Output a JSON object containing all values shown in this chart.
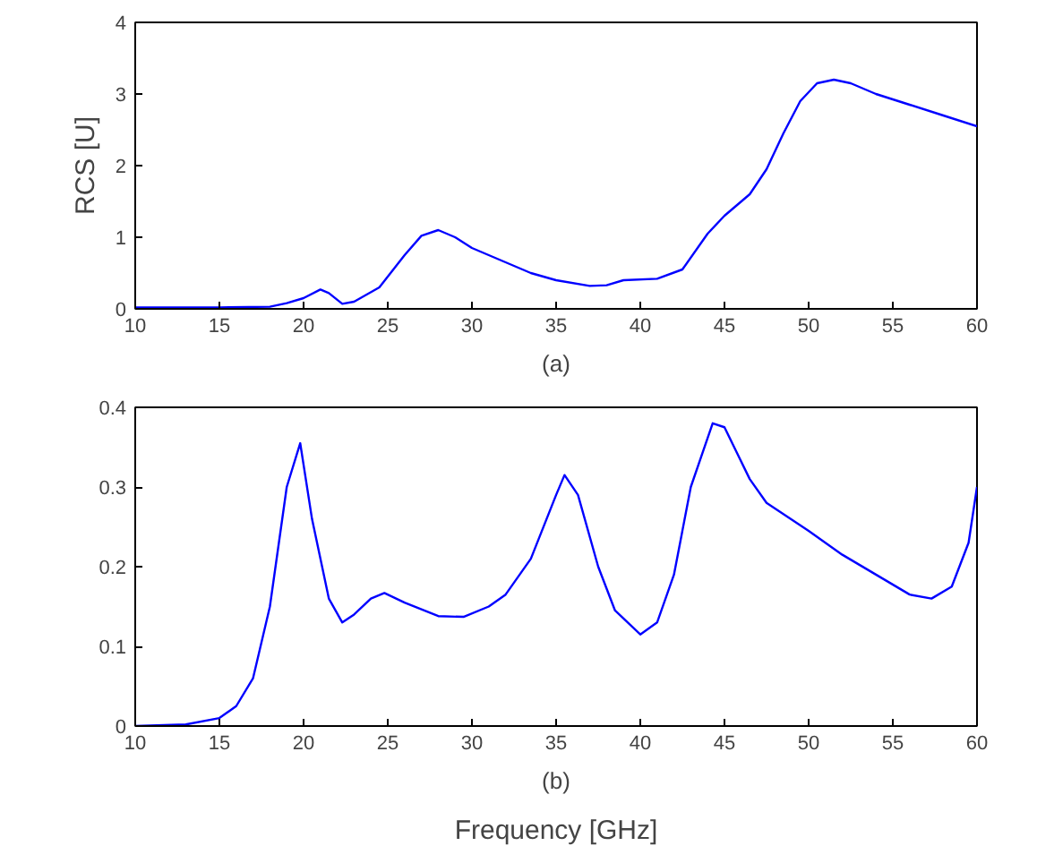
{
  "chart_data": [
    {
      "type": "line",
      "subtitle": "(a)",
      "ylabel": "RCS [U]",
      "x": [
        10,
        15,
        18,
        19,
        20,
        21,
        21.5,
        22.3,
        23,
        24.5,
        26,
        27,
        28,
        29,
        30,
        32,
        33.5,
        35,
        37,
        38,
        39,
        41,
        42.5,
        44,
        45,
        46.5,
        47.5,
        48.5,
        49.5,
        50.5,
        51.5,
        52.5,
        54,
        56,
        58,
        60
      ],
      "series": [
        {
          "color": "#0000ff",
          "values": [
            0.02,
            0.02,
            0.03,
            0.08,
            0.15,
            0.27,
            0.22,
            0.07,
            0.1,
            0.3,
            0.75,
            1.02,
            1.1,
            1.0,
            0.85,
            0.65,
            0.5,
            0.4,
            0.32,
            0.33,
            0.4,
            0.42,
            0.55,
            1.05,
            1.3,
            1.6,
            1.95,
            2.45,
            2.9,
            3.15,
            3.2,
            3.15,
            3.0,
            2.85,
            2.7,
            2.55
          ]
        }
      ],
      "xlim": [
        10,
        60
      ],
      "xticks": [
        10,
        15,
        20,
        25,
        30,
        35,
        40,
        45,
        50,
        55,
        60
      ],
      "ylim": [
        0,
        4
      ],
      "yticks": [
        0,
        1,
        2,
        3,
        4
      ],
      "grid": false
    },
    {
      "type": "line",
      "subtitle": "(b)",
      "xlabel": "Frequency [GHz]",
      "x": [
        10,
        13,
        15,
        16,
        17,
        18,
        19,
        19.8,
        20.5,
        21.5,
        22.3,
        23,
        24,
        24.8,
        26,
        28,
        29.5,
        31,
        32,
        33.5,
        35,
        35.5,
        36.3,
        37.5,
        38.5,
        40,
        41,
        42,
        43,
        44.3,
        45,
        46.5,
        47.5,
        50,
        52,
        54,
        56,
        57.3,
        58.5,
        59.5,
        60
      ],
      "series": [
        {
          "color": "#0000ff",
          "values": [
            0,
            0.002,
            0.01,
            0.025,
            0.06,
            0.15,
            0.3,
            0.355,
            0.26,
            0.16,
            0.13,
            0.14,
            0.16,
            0.167,
            0.155,
            0.138,
            0.137,
            0.15,
            0.165,
            0.21,
            0.29,
            0.315,
            0.29,
            0.2,
            0.145,
            0.115,
            0.13,
            0.19,
            0.3,
            0.38,
            0.375,
            0.31,
            0.28,
            0.245,
            0.215,
            0.19,
            0.165,
            0.16,
            0.175,
            0.23,
            0.3
          ]
        }
      ],
      "xlim": [
        10,
        60
      ],
      "xticks": [
        10,
        15,
        20,
        25,
        30,
        35,
        40,
        45,
        50,
        55,
        60
      ],
      "ylim": [
        0,
        0.4
      ],
      "yticks": [
        0,
        0.1,
        0.2,
        0.3,
        0.4
      ],
      "grid": false
    }
  ]
}
